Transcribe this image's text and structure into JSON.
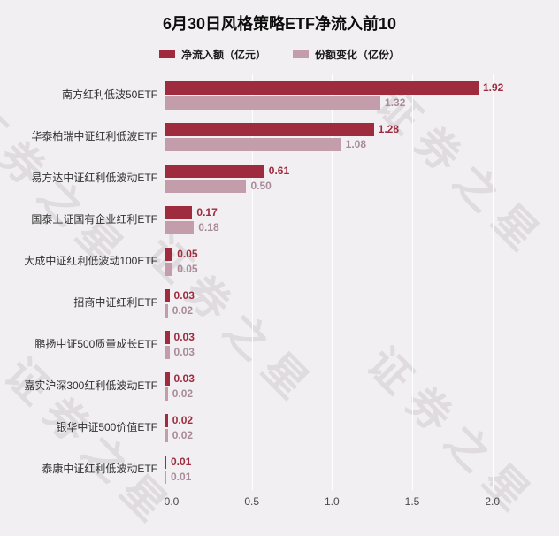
{
  "title": "6月30日风格策略ETF净流入前10",
  "watermark": {
    "text": "证券之星"
  },
  "legend": [
    {
      "label": "净流入额（亿元）",
      "color": "#9e2b3e"
    },
    {
      "label": "份额变化（亿份）",
      "color": "#c39da9"
    }
  ],
  "chart_data": {
    "type": "bar",
    "orientation": "horizontal",
    "title": "6月30日风格策略ETF净流入前10",
    "categories": [
      "南方红利低波50ETF",
      "华泰柏瑞中证红利低波ETF",
      "易方达中证红利低波动ETF",
      "国泰上证国有企业红利ETF",
      "大成中证红利低波动100ETF",
      "招商中证红利ETF",
      "鹏扬中证500质量成长ETF",
      "嘉实沪深300红利低波动ETF",
      "银华中证500价值ETF",
      "泰康中证红利低波动ETF"
    ],
    "series": [
      {
        "name": "净流入额（亿元）",
        "color": "#9e2b3e",
        "label_color": "#9e2b3e",
        "values": [
          1.92,
          1.28,
          0.61,
          0.17,
          0.05,
          0.03,
          0.03,
          0.03,
          0.02,
          0.01
        ]
      },
      {
        "name": "份额变化（亿份）",
        "color": "#c39da9",
        "label_color": "#a88b97",
        "values": [
          1.32,
          1.08,
          0.5,
          0.18,
          0.05,
          0.02,
          0.03,
          0.02,
          0.02,
          0.01
        ]
      }
    ],
    "xlim": [
      0,
      2.25
    ],
    "xticks": [
      0,
      0.5,
      1.0,
      1.5,
      2.0
    ],
    "xtick_labels": [
      "0.0",
      "0.5",
      "1.0",
      "1.5",
      "2.0"
    ],
    "grid": true,
    "legend_position": "top"
  }
}
